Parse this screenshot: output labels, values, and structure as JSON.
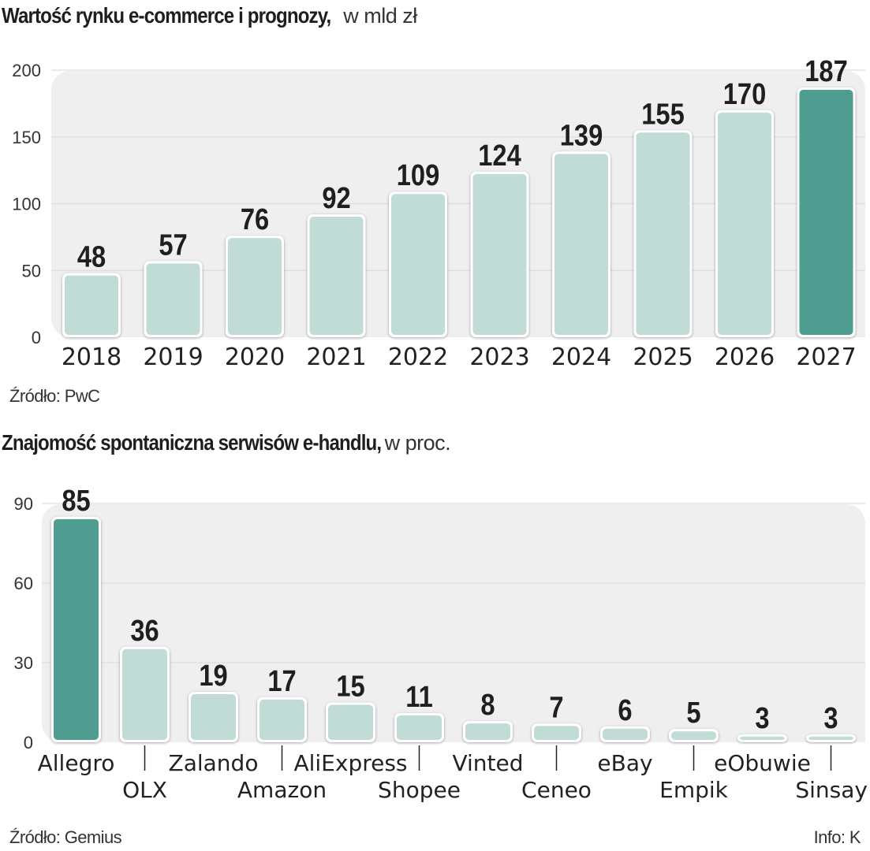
{
  "colors": {
    "bar_light": "#c1dbd7",
    "bar_highlight": "#4f9c91",
    "plot_background": "#efefef",
    "grid": "#dddddd",
    "text": "#1e1e1e"
  },
  "footer": {
    "info": "Info: K"
  },
  "chart_data": [
    {
      "type": "bar",
      "title": "Wartość rynku e-commerce i prognozy,",
      "unit": "w mld zł",
      "xlabel": "",
      "ylabel": "",
      "categories": [
        "2018",
        "2019",
        "2020",
        "2021",
        "2022",
        "2023",
        "2024",
        "2025",
        "2026",
        "2027"
      ],
      "values": [
        48,
        57,
        76,
        92,
        109,
        124,
        139,
        155,
        170,
        187
      ],
      "data_labels": [
        "48",
        "57",
        "76",
        "92",
        "109",
        "124",
        "139",
        "155",
        "170",
        "187"
      ],
      "highlight": [
        "2027"
      ],
      "ylim": [
        0,
        200
      ],
      "yticks": [
        0,
        50,
        100,
        150,
        200
      ],
      "ytick_labels": [
        "0",
        "50",
        "100",
        "150",
        "200"
      ],
      "grid": true,
      "source": "Źródło: PwC"
    },
    {
      "type": "bar",
      "title": "Znajomość spontaniczna serwisów e-handlu,",
      "unit": "w proc.",
      "xlabel": "",
      "ylabel": "",
      "categories": [
        "Allegro",
        "OLX",
        "Zalando",
        "Amazon",
        "AliExpress",
        "Shopee",
        "Vinted",
        "Ceneo",
        "eBay",
        "Empik",
        "eObuwie",
        "Sinsay"
      ],
      "values": [
        85,
        36,
        19,
        17,
        15,
        11,
        8,
        7,
        6,
        5,
        3,
        3
      ],
      "data_labels": [
        "85",
        "36",
        "19",
        "17",
        "15",
        "11",
        "8",
        "7",
        "6",
        "5",
        "3",
        "3"
      ],
      "highlight": [
        "Allegro"
      ],
      "label_row": [
        "upper",
        "lower",
        "upper",
        "lower",
        "upper",
        "lower",
        "upper",
        "lower",
        "upper",
        "lower",
        "upper",
        "lower"
      ],
      "ylim": [
        0,
        90
      ],
      "yticks": [
        0,
        30,
        60,
        90
      ],
      "ytick_labels": [
        "0",
        "30",
        "60",
        "90"
      ],
      "grid": true,
      "source": "Źródło: Gemius"
    }
  ]
}
